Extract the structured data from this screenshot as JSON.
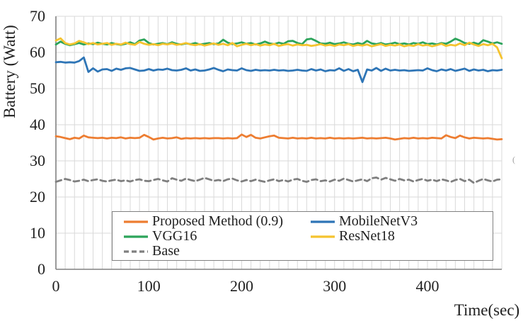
{
  "colors": {
    "grid": "#D9D9D9",
    "axis": "#808080",
    "text": "#1F1F1F",
    "legend_border": "#808080",
    "background": "#FFFFFF"
  },
  "annotations": {
    "stray_mark": "("
  },
  "chart_data": {
    "type": "line",
    "title": "",
    "xlabel": "Time(sec)",
    "ylabel": "Battery (Watt)",
    "xlim": [
      0,
      480
    ],
    "ylim": [
      0,
      70
    ],
    "x_ticks": [
      0,
      100,
      200,
      300,
      400
    ],
    "y_ticks": [
      0,
      10,
      20,
      30,
      40,
      50,
      60,
      70
    ],
    "x_minor_grid_step": 10,
    "grid": true,
    "legend_position": "inside-bottom-center",
    "legend_columns": 2,
    "x": [
      0,
      5,
      10,
      15,
      20,
      25,
      30,
      35,
      40,
      45,
      50,
      55,
      60,
      65,
      70,
      75,
      80,
      85,
      90,
      95,
      100,
      105,
      110,
      115,
      120,
      125,
      130,
      135,
      140,
      145,
      150,
      155,
      160,
      165,
      170,
      175,
      180,
      185,
      190,
      195,
      200,
      205,
      210,
      215,
      220,
      225,
      230,
      235,
      240,
      245,
      250,
      255,
      260,
      265,
      270,
      275,
      280,
      285,
      290,
      295,
      300,
      305,
      310,
      315,
      320,
      325,
      330,
      335,
      340,
      345,
      350,
      355,
      360,
      365,
      370,
      375,
      380,
      385,
      390,
      395,
      400,
      405,
      410,
      415,
      420,
      425,
      430,
      435,
      440,
      445,
      450,
      455,
      460,
      465,
      470,
      475,
      480
    ],
    "series": [
      {
        "name": "Proposed Method (0.9)",
        "color": "#ED7D31",
        "dash": "solid",
        "values": [
          36.8,
          36.6,
          36.3,
          36.0,
          36.4,
          36.2,
          37.0,
          36.5,
          36.4,
          36.3,
          36.4,
          36.2,
          36.4,
          36.3,
          36.5,
          36.2,
          36.4,
          36.3,
          36.4,
          37.2,
          36.6,
          35.9,
          36.2,
          36.4,
          36.2,
          36.3,
          36.5,
          36.1,
          36.3,
          36.2,
          36.3,
          36.2,
          36.3,
          36.2,
          36.3,
          36.3,
          36.2,
          36.3,
          36.2,
          36.3,
          37.3,
          36.6,
          37.2,
          36.4,
          36.2,
          36.5,
          36.8,
          37.0,
          36.4,
          36.3,
          36.2,
          36.4,
          36.2,
          36.3,
          36.2,
          36.4,
          36.2,
          36.3,
          36.2,
          36.4,
          36.2,
          36.3,
          36.2,
          36.3,
          36.2,
          36.3,
          36.4,
          36.2,
          36.3,
          36.2,
          36.3,
          36.4,
          36.2,
          35.9,
          36.1,
          36.3,
          36.2,
          36.4,
          36.2,
          36.3,
          36.2,
          36.4,
          36.3,
          36.2,
          37.1,
          36.6,
          36.3,
          37.0,
          36.5,
          36.2,
          36.4,
          36.3,
          36.2,
          36.3,
          36.1,
          35.9,
          36.0
        ]
      },
      {
        "name": "MobileNetV3",
        "color": "#2E75B6",
        "dash": "solid",
        "values": [
          57.3,
          57.4,
          57.2,
          57.3,
          57.2,
          57.6,
          58.6,
          54.6,
          55.6,
          54.7,
          55.3,
          55.4,
          54.9,
          55.5,
          55.2,
          55.6,
          55.7,
          55.3,
          54.9,
          55.0,
          55.4,
          55.0,
          55.3,
          55.2,
          55.5,
          55.1,
          55.0,
          55.2,
          55.6,
          55.0,
          55.3,
          54.9,
          55.0,
          55.3,
          55.7,
          55.2,
          54.8,
          55.3,
          55.1,
          55.0,
          55.6,
          55.1,
          54.9,
          55.2,
          55.0,
          55.1,
          55.0,
          55.2,
          55.0,
          55.1,
          54.9,
          55.0,
          55.2,
          55.0,
          54.9,
          55.4,
          55.0,
          55.3,
          54.8,
          55.1,
          55.0,
          55.6,
          54.9,
          55.4,
          54.8,
          55.2,
          51.8,
          55.3,
          55.0,
          55.7,
          54.9,
          55.5,
          55.0,
          55.2,
          55.0,
          55.1,
          54.9,
          55.0,
          55.1,
          55.0,
          55.6,
          55.1,
          54.8,
          55.3,
          55.0,
          55.4,
          54.9,
          55.2,
          55.5,
          54.9,
          55.3,
          55.0,
          55.2,
          54.8,
          55.1,
          55.0,
          55.2
        ]
      },
      {
        "name": "VGG16",
        "color": "#2CA45A",
        "dash": "solid",
        "values": [
          62.2,
          63.0,
          62.4,
          62.0,
          62.3,
          62.6,
          62.2,
          62.5,
          62.3,
          62.7,
          62.4,
          62.2,
          62.6,
          62.3,
          62.1,
          62.4,
          62.8,
          62.3,
          63.3,
          63.6,
          62.6,
          62.2,
          62.4,
          62.6,
          62.3,
          62.8,
          62.4,
          62.2,
          62.5,
          62.3,
          62.6,
          62.2,
          62.4,
          62.6,
          62.3,
          62.5,
          63.5,
          62.7,
          62.3,
          62.5,
          62.8,
          62.4,
          62.6,
          62.2,
          62.5,
          63.0,
          62.5,
          62.3,
          62.7,
          62.4,
          63.1,
          63.2,
          62.6,
          62.3,
          63.6,
          63.8,
          63.2,
          62.5,
          62.4,
          62.7,
          62.3,
          62.5,
          62.8,
          62.4,
          62.2,
          62.6,
          62.3,
          63.2,
          62.5,
          62.3,
          62.6,
          62.2,
          62.4,
          62.7,
          62.3,
          62.5,
          62.2,
          62.6,
          62.4,
          62.8,
          62.3,
          62.5,
          62.2,
          62.6,
          62.4,
          63.0,
          63.8,
          63.3,
          62.6,
          62.4,
          62.7,
          62.3,
          63.4,
          63.0,
          62.5,
          62.8,
          62.4
        ]
      },
      {
        "name": "ResNet18",
        "color": "#F5C32F",
        "dash": "solid",
        "values": [
          63.3,
          63.9,
          62.6,
          62.2,
          62.5,
          63.2,
          62.8,
          62.3,
          62.6,
          62.2,
          62.4,
          62.6,
          62.1,
          62.4,
          62.2,
          62.7,
          62.3,
          62.1,
          62.9,
          62.4,
          62.1,
          62.3,
          62.0,
          62.4,
          62.2,
          62.5,
          62.1,
          62.3,
          62.6,
          62.2,
          62.0,
          62.3,
          61.9,
          62.2,
          62.5,
          62.1,
          62.4,
          62.0,
          62.6,
          61.7,
          62.1,
          62.4,
          62.0,
          62.3,
          61.9,
          62.2,
          62.0,
          62.4,
          61.8,
          62.1,
          62.3,
          61.9,
          62.2,
          62.0,
          62.1,
          61.8,
          62.0,
          62.3,
          61.9,
          62.1,
          61.8,
          62.2,
          62.0,
          62.3,
          61.8,
          62.1,
          61.9,
          62.2,
          61.7,
          62.0,
          62.3,
          61.8,
          62.1,
          61.9,
          62.2,
          61.7,
          62.0,
          61.8,
          62.3,
          61.9,
          62.1,
          61.7,
          62.0,
          62.4,
          61.8,
          62.1,
          61.9,
          62.5,
          62.0,
          62.7,
          62.2,
          61.8,
          62.3,
          62.0,
          62.4,
          61.4,
          58.4
        ]
      },
      {
        "name": "Base",
        "color": "#7F7F7F",
        "dash": "dashed",
        "values": [
          24.2,
          24.6,
          25.0,
          24.7,
          24.3,
          24.5,
          24.8,
          24.4,
          24.7,
          24.9,
          24.5,
          24.3,
          24.6,
          24.8,
          24.4,
          24.6,
          24.3,
          24.7,
          24.9,
          24.5,
          24.4,
          24.7,
          25.0,
          24.6,
          24.3,
          25.2,
          24.8,
          24.5,
          25.1,
          24.7,
          24.4,
          24.8,
          25.3,
          24.9,
          24.5,
          24.7,
          24.4,
          24.9,
          25.1,
          24.6,
          24.3,
          24.7,
          24.4,
          24.8,
          24.5,
          24.2,
          24.6,
          24.9,
          24.4,
          24.7,
          24.3,
          24.8,
          25.0,
          24.5,
          24.2,
          24.7,
          24.9,
          24.4,
          24.6,
          24.3,
          24.8,
          24.5,
          25.1,
          24.7,
          24.3,
          24.6,
          24.9,
          24.4,
          25.2,
          25.4,
          24.8,
          25.3,
          24.9,
          24.5,
          25.0,
          24.6,
          24.8,
          24.3,
          24.7,
          25.0,
          24.5,
          24.8,
          24.4,
          24.9,
          24.6,
          24.2,
          24.7,
          25.0,
          24.4,
          24.8,
          23.9,
          24.5,
          25.0,
          24.6,
          24.3,
          24.8,
          24.9
        ]
      }
    ]
  }
}
